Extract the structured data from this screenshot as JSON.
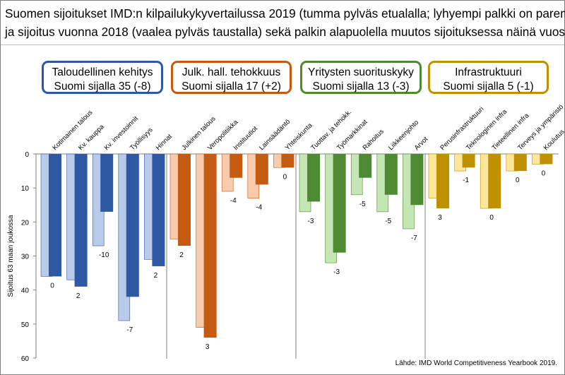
{
  "title": {
    "line1": "Suomen sijoitukset IMD:n kilpailukykyvertailussa 2019 (tumma pylväs etualalla; lyhyempi palkki on parempi)",
    "line2": "ja sijoitus vuonna 2018 (vaalea pylväs taustalla) sekä palkin alapuolella muutos sijoituksessa näinä vuosina"
  },
  "groups": [
    {
      "label1": "Taloudellinen kehitys",
      "label2": "Suomi sijalla 35 (-8)",
      "color": "#2F58A3",
      "light": "#B8CBEA",
      "border": "#2F58A3"
    },
    {
      "label1": "Julk. hall. tehokkuus",
      "label2": "Suomi sijalla 17 (+2)",
      "color": "#C55A11",
      "light": "#F8CBAD",
      "border": "#C55A11"
    },
    {
      "label1": "Yritysten suorituskyky",
      "label2": "Suomi sijalla 13 (-3)",
      "color": "#4E8A32",
      "light": "#C6E5B5",
      "border": "#4E8A32"
    },
    {
      "label1": "Infrastruktuuri",
      "label2": "Suomi sijalla 5 (-1)",
      "color": "#BF9000",
      "light": "#FFE699",
      "border": "#BF9000"
    }
  ],
  "source": "Lähde: IMD World Competitiveness Yearbook 2019.",
  "chart_data": {
    "type": "bar",
    "ylabel": "Sijoitus 63 maan joukossa",
    "ylim": [
      0,
      60
    ],
    "yticks": [
      "0",
      "10",
      "20",
      "30",
      "40",
      "50",
      "60"
    ],
    "y_inverted": true,
    "grid": false,
    "categories": [
      "Kotimainen talous",
      "Kv. kauppa",
      "Kv. investoinnit",
      "Työllisyys",
      "Hinnat",
      "Julkinen talous",
      "Veropolitiikka",
      "Instituutiot",
      "Lainsäädäntö",
      "Yhteiskunta",
      "Tuottav. ja tehokk.",
      "Työmarkkinat",
      "Rahoitus",
      "Liikkeenjohto",
      "Arvot",
      "Perusinfrastruktuuri",
      "Teknologinen infra",
      "Tieteellinen infra",
      "Terveys ja ympäristö",
      "Koulutus"
    ],
    "category_group": [
      0,
      0,
      0,
      0,
      0,
      1,
      1,
      1,
      1,
      1,
      2,
      2,
      2,
      2,
      2,
      3,
      3,
      3,
      3,
      3
    ],
    "series": [
      {
        "name": "2019",
        "values": [
          36,
          39,
          17,
          42,
          33,
          27,
          54,
          7,
          9,
          4,
          14,
          29,
          7,
          12,
          15,
          16,
          4,
          16,
          5,
          3
        ]
      },
      {
        "name": "2018",
        "values": [
          36,
          37,
          27,
          49,
          31,
          25,
          51,
          11,
          13,
          4,
          17,
          32,
          12,
          17,
          22,
          13,
          5,
          16,
          5,
          3
        ]
      }
    ],
    "change_labels": [
      "0",
      "2",
      "-10",
      "-7",
      "2",
      "2",
      "3",
      "-4",
      "-4",
      "0",
      "-3",
      "-3",
      "-5",
      "-5",
      "-7",
      "3",
      "-1",
      "0",
      "0",
      "0"
    ]
  }
}
